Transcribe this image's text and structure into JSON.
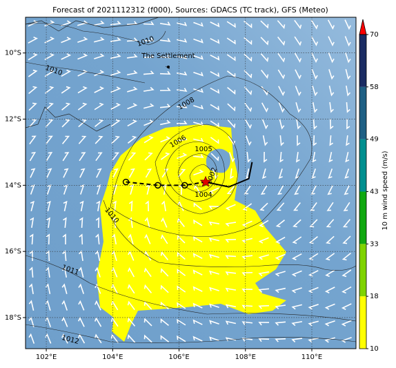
{
  "chart_data": {
    "type": "map",
    "title": "Forecast of 2021112312 (f000), Sources: GDACS (TC track), GFS (Meteo)",
    "xlim": [
      101.375,
      111.33
    ],
    "ylim": [
      -18.94,
      -8.92
    ],
    "xticks": [
      {
        "value": 102,
        "label": "102°E"
      },
      {
        "value": 104,
        "label": "104°E"
      },
      {
        "value": 106,
        "label": "106°E"
      },
      {
        "value": 108,
        "label": "108°E"
      },
      {
        "value": 110,
        "label": "110°E"
      }
    ],
    "yticks": [
      {
        "value": -10,
        "label": "10°S"
      },
      {
        "value": -12,
        "label": "12°S"
      },
      {
        "value": -14,
        "label": "14°S"
      },
      {
        "value": -16,
        "label": "16°S"
      },
      {
        "value": -18,
        "label": "18°S"
      }
    ],
    "grid": true,
    "place_label": "The Settlement",
    "contour_labels": [
      "1010",
      "1010",
      "1008",
      "1006",
      "1005",
      "1004",
      "1002",
      "1010",
      "1011",
      "1012"
    ],
    "track": {
      "color": "#000000",
      "x": [
        104.4,
        105.36,
        106.17,
        106.8
      ],
      "y": [
        -13.9,
        -14.0,
        -14.0,
        -13.9
      ]
    },
    "forecast_track": {
      "color": "#000000",
      "x": [
        106.8,
        107.5,
        108.1,
        108.2
      ],
      "y": [
        -13.9,
        -14.05,
        -13.8,
        -13.3
      ]
    },
    "colorbar": {
      "label": "10 m wind speed (m/s)",
      "ticks": [
        10,
        18,
        33,
        43,
        49,
        58,
        70
      ],
      "colors": [
        "#ffff00",
        "#7fd300",
        "#11a811",
        "#008f8f",
        "#1f5f84",
        "#1b2c63"
      ],
      "extend_color": "#ff0000"
    }
  }
}
